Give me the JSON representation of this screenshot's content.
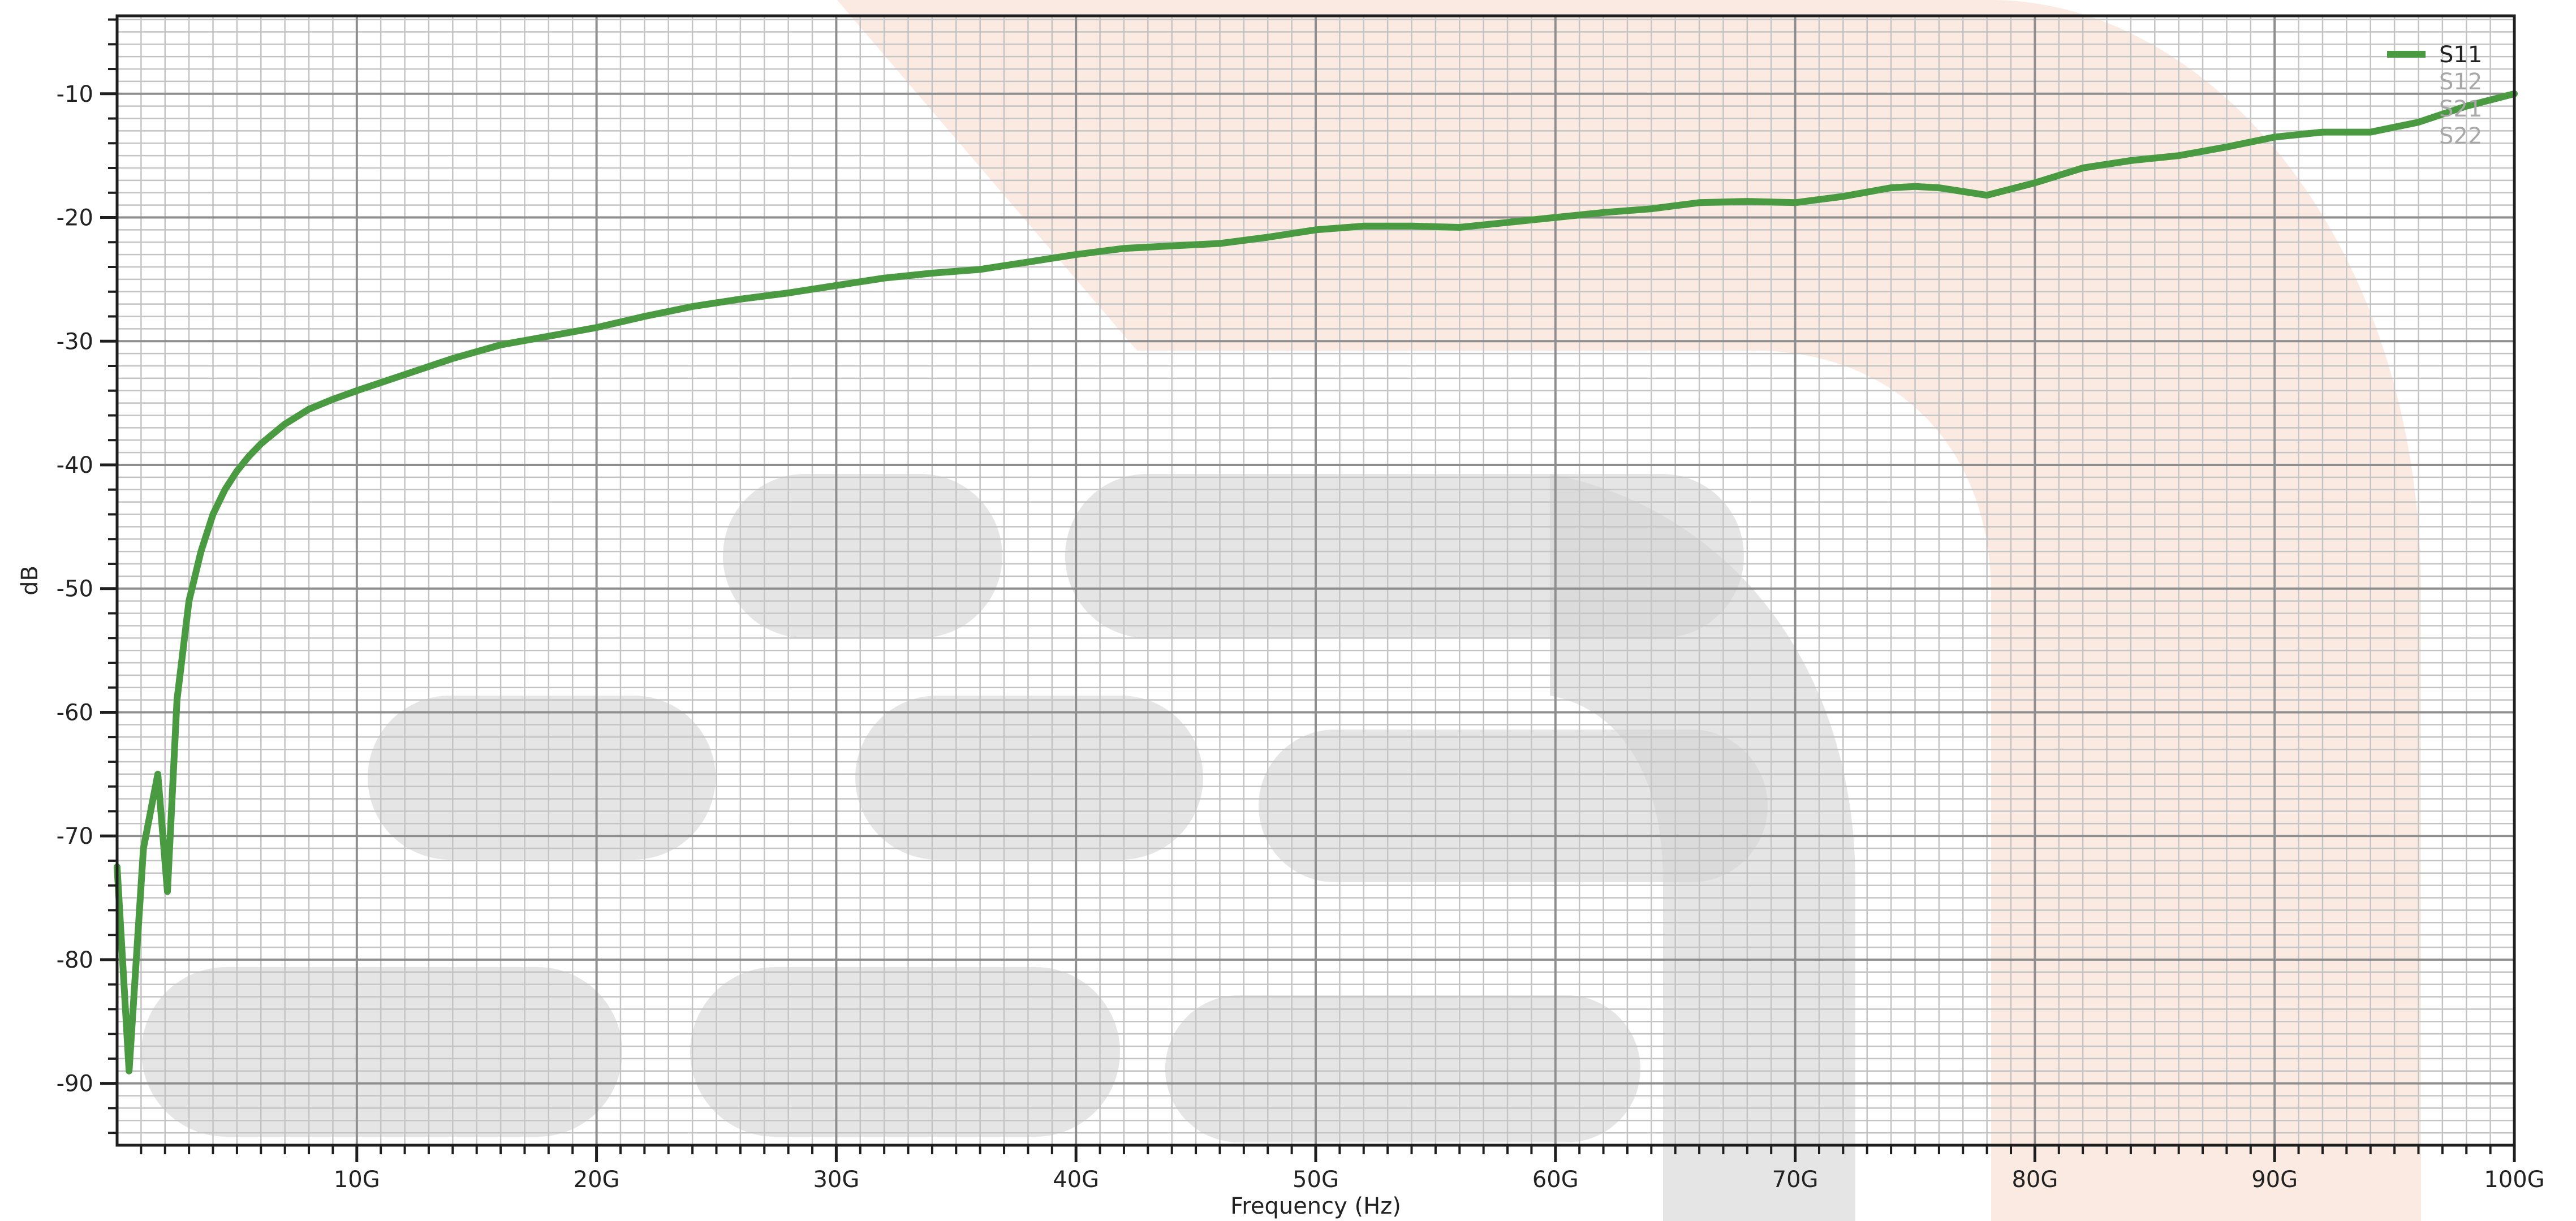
{
  "chart_data": {
    "type": "line",
    "xlabel": "Frequency (Hz)",
    "ylabel": "dB",
    "xlim": [
      0,
      100
    ],
    "ylim": [
      -95,
      -3.7
    ],
    "x_ticks": [
      10,
      20,
      30,
      40,
      50,
      60,
      70,
      80,
      90,
      100
    ],
    "x_tick_labels": [
      "10G",
      "20G",
      "30G",
      "40G",
      "50G",
      "60G",
      "70G",
      "80G",
      "90G",
      "100G"
    ],
    "y_ticks": [
      -10,
      -20,
      -30,
      -40,
      -50,
      -60,
      -70,
      -80,
      -90
    ],
    "y_tick_labels": [
      "-10",
      "-20",
      "-30",
      "-40",
      "-50",
      "-60",
      "-70",
      "-80",
      "-90"
    ],
    "grid": true,
    "legend_position": "top-right",
    "series": [
      {
        "name": "S11",
        "visible": true,
        "color": "#4a9a42",
        "x": [
          0.0,
          0.5,
          1.1,
          1.7,
          2.1,
          2.5,
          3.0,
          3.5,
          4.0,
          4.5,
          5.0,
          5.5,
          6.0,
          7.0,
          8.0,
          9.0,
          10.0,
          12.0,
          14.0,
          16.0,
          18.0,
          20.0,
          22.0,
          24.0,
          26.0,
          28.0,
          30.0,
          32.0,
          34.0,
          36.0,
          38.0,
          40.0,
          42.0,
          44.0,
          46.0,
          48.0,
          50.0,
          52.0,
          54.0,
          56.0,
          58.0,
          60.0,
          62.0,
          64.0,
          66.0,
          68.0,
          70.0,
          72.0,
          74.0,
          75.0,
          76.0,
          78.0,
          80.0,
          82.0,
          84.0,
          86.0,
          88.0,
          90.0,
          92.0,
          94.0,
          96.0,
          98.0,
          100.0
        ],
        "values": [
          -72.5,
          -89.0,
          -71.0,
          -65.0,
          -74.5,
          -59.0,
          -51.0,
          -47.0,
          -44.0,
          -42.0,
          -40.5,
          -39.3,
          -38.3,
          -36.7,
          -35.5,
          -34.7,
          -34.0,
          -32.7,
          -31.4,
          -30.3,
          -29.6,
          -28.9,
          -28.0,
          -27.2,
          -26.6,
          -26.1,
          -25.5,
          -24.9,
          -24.5,
          -24.2,
          -23.6,
          -23.0,
          -22.5,
          -22.3,
          -22.1,
          -21.6,
          -21.0,
          -20.7,
          -20.7,
          -20.8,
          -20.4,
          -20.0,
          -19.6,
          -19.3,
          -18.8,
          -18.7,
          -18.8,
          -18.3,
          -17.6,
          -17.5,
          -17.6,
          -18.2,
          -17.2,
          -16.0,
          -15.4,
          -15.0,
          -14.3,
          -13.5,
          -13.1,
          -13.1,
          -12.3,
          -11.0,
          -10.0
        ]
      },
      {
        "name": "S12",
        "visible": false,
        "color": "#a8a8a8"
      },
      {
        "name": "S21",
        "visible": false,
        "color": "#a8a8a8"
      },
      {
        "name": "S22",
        "visible": false,
        "color": "#a8a8a8"
      }
    ]
  }
}
